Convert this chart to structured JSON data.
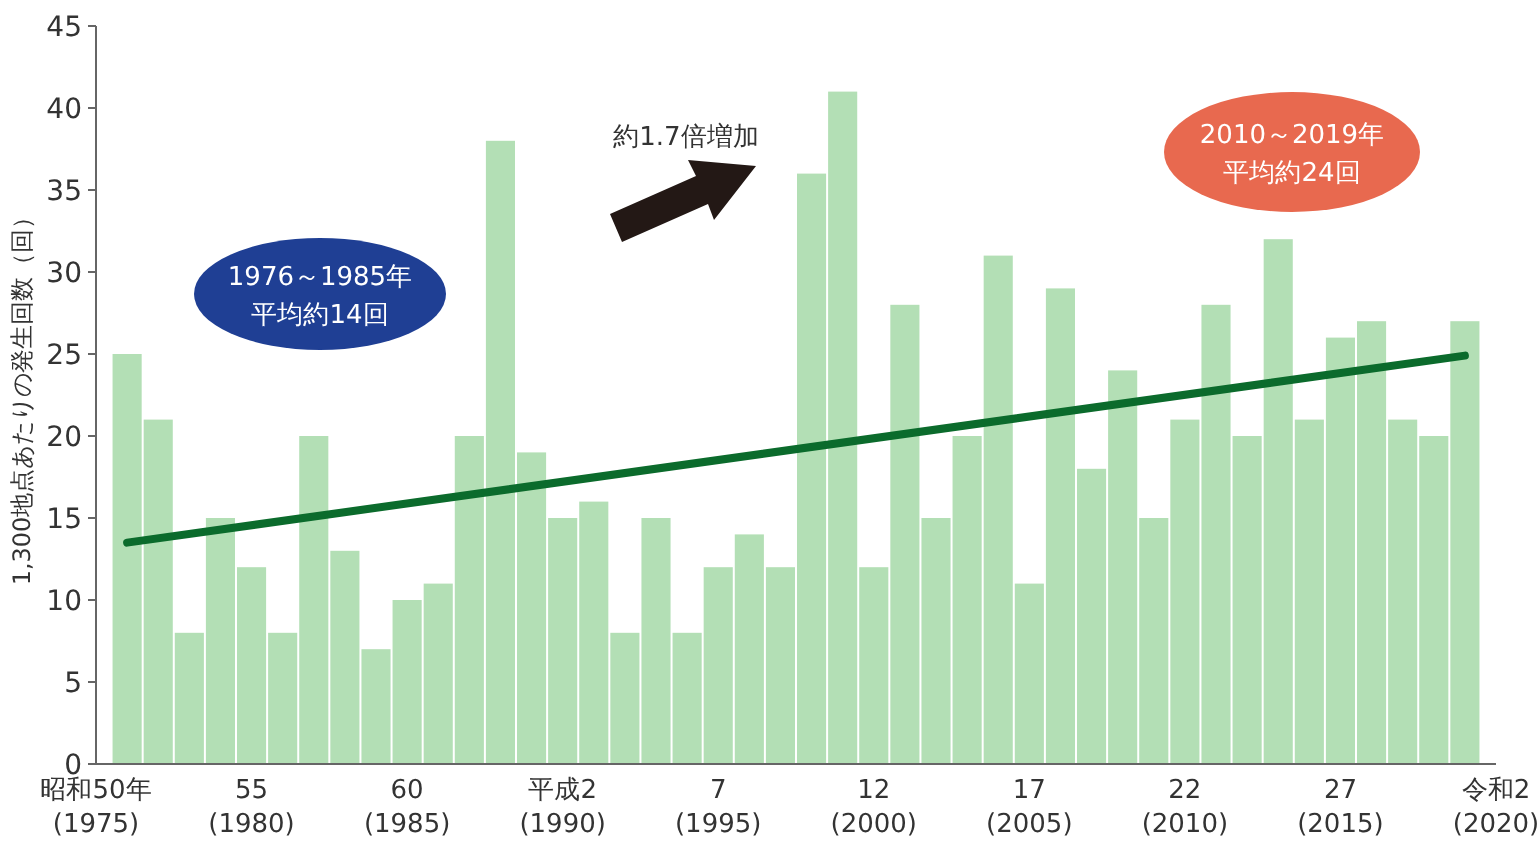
{
  "chart_data": {
    "type": "bar",
    "ylabel": "1,300地点あたりの発生回数（回）",
    "categories": [
      "昭和50年\n(1975)",
      null,
      null,
      null,
      null,
      "55\n(1980)",
      null,
      null,
      null,
      null,
      "60\n(1985)",
      null,
      null,
      null,
      null,
      "平成2\n(1990)",
      null,
      null,
      null,
      null,
      "7\n(1995)",
      null,
      null,
      null,
      null,
      "12\n(2000)",
      null,
      null,
      null,
      null,
      "17\n(2005)",
      null,
      null,
      null,
      null,
      "22\n(2010)",
      null,
      null,
      null,
      null,
      "27\n(2015)",
      null,
      null,
      null,
      null,
      "令和2\n(2020)"
    ],
    "series": [
      {
        "color": "#b3dfb5",
        "values": [
          null,
          25,
          21,
          8,
          15,
          12,
          8,
          20,
          13,
          7,
          10,
          11,
          20,
          38,
          19,
          15,
          16,
          8,
          15,
          8,
          12,
          14,
          12,
          36,
          41,
          12,
          28,
          15,
          20,
          31,
          11,
          29,
          18,
          24,
          15,
          21,
          28,
          20,
          32,
          21,
          26,
          27,
          21,
          20,
          27,
          null
        ]
      },
      {
        "type": "line",
        "color": "#0b6b2c",
        "values": [
          null,
          13.5,
          null,
          null,
          null,
          null,
          null,
          null,
          null,
          null,
          null,
          null,
          null,
          null,
          null,
          null,
          null,
          null,
          null,
          null,
          null,
          null,
          null,
          null,
          null,
          null,
          null,
          null,
          null,
          null,
          null,
          null,
          null,
          null,
          null,
          null,
          null,
          null,
          null,
          null,
          null,
          null,
          null,
          null,
          24.9,
          null
        ]
      }
    ],
    "ylim": [
      0,
      45
    ],
    "yticks": [
      0,
      5,
      10,
      15,
      20,
      25,
      30,
      35,
      40,
      45
    ],
    "line_style": "solid",
    "annotations": [
      "1976～1985年",
      "平均約14回",
      "約1.7倍増加",
      "2010～2019年",
      "平均約24回"
    ]
  }
}
